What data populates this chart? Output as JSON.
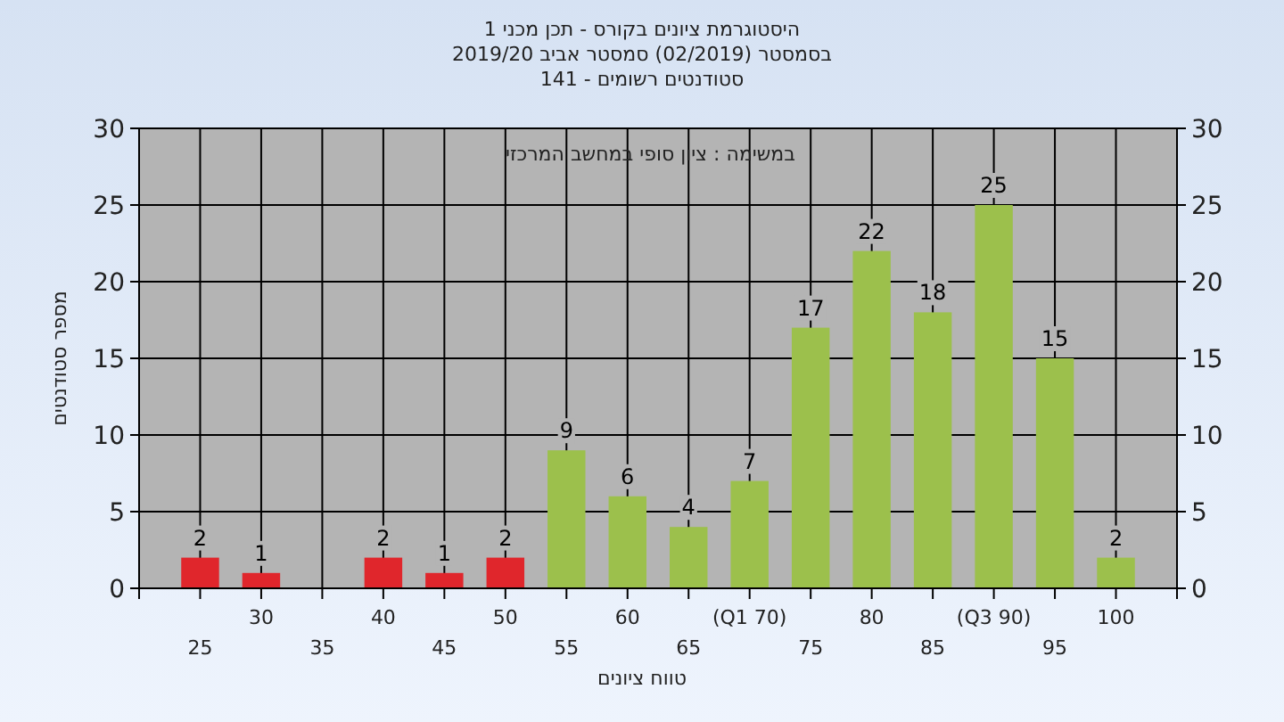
{
  "chart_data": {
    "type": "bar",
    "title": "היסטוגרמת ציונים בקורס - תכן מכני 1",
    "subtitle": "בסמסטר  (02/2019)  סמסטר אביב 2019/20",
    "annotations": [
      "סטודנטים רשומים - 141",
      "במשימה : ציון סופי במחשב המרכזי"
    ],
    "xlabel": "טווח ציונים",
    "ylabel": "מספר סטודנטים",
    "categories": [
      "25",
      "30",
      "35",
      "40",
      "45",
      "50",
      "55",
      "60",
      "65",
      "(Q1 70)",
      "75",
      "80",
      "85",
      "(Q3 90)",
      "95",
      "100"
    ],
    "series": [
      {
        "colors": [
          "#e0262c",
          "#e0262c",
          "#e0262c",
          "#e0262c",
          "#e0262c",
          "#e0262c",
          "#9cc04c",
          "#9cc04c",
          "#9cc04c",
          "#9cc04c",
          "#9cc04c",
          "#9cc04c",
          "#9cc04c",
          "#9cc04c",
          "#9cc04c",
          "#9cc04c"
        ],
        "values": [
          2,
          1,
          null,
          2,
          1,
          2,
          9,
          6,
          4,
          7,
          17,
          22,
          18,
          25,
          15,
          2
        ]
      }
    ],
    "data_labels": true,
    "grid": true,
    "ylim": [
      0,
      30
    ],
    "yticks": [
      0,
      5,
      10,
      15,
      20,
      25,
      30
    ],
    "y2lim": [
      0,
      30
    ],
    "y2ticks": [
      0,
      5,
      10,
      15,
      20,
      25,
      30
    ]
  }
}
